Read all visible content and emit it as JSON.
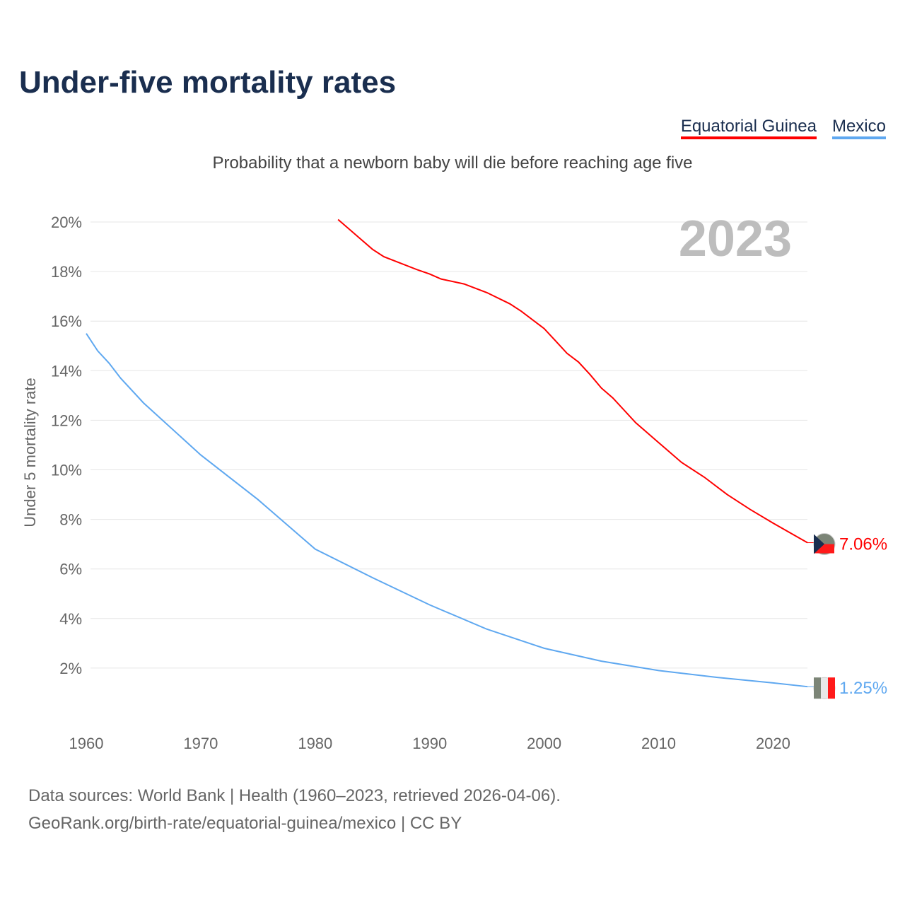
{
  "title": "Under-five mortality rates",
  "subtitle": "Probability that a newborn baby will die before reaching age five",
  "year_label": "2023",
  "source_line1": "Data sources: World Bank | Health (1960–2023, retrieved 2026-04-06).",
  "source_line2": "GeoRank.org/birth-rate/equatorial-guinea/mexico | CC BY",
  "chart_data": {
    "type": "line",
    "title": "Under-five mortality rates",
    "xlabel": "",
    "ylabel": "Under 5 mortality rate",
    "xlim": [
      1960,
      2023
    ],
    "ylim": [
      0,
      20
    ],
    "xticks": [
      1960,
      1970,
      1980,
      1990,
      2000,
      2010,
      2020
    ],
    "yticks": [
      2,
      4,
      6,
      8,
      10,
      12,
      14,
      16,
      18,
      20
    ],
    "ytick_labels": [
      "2%",
      "4%",
      "6%",
      "8%",
      "10%",
      "12%",
      "14%",
      "16%",
      "18%",
      "20%"
    ],
    "grid": true,
    "legend_position": "top-right",
    "series": [
      {
        "name": "Equatorial Guinea",
        "color": "#ff0000",
        "end_label": "7.06%",
        "x": [
          1982,
          1985,
          1986,
          1989,
          1990,
          1991,
          1993,
          1995,
          1997,
          1998,
          2000,
          2001,
          2002,
          2003,
          2004,
          2005,
          2006,
          2007,
          2008,
          2010,
          2012,
          2014,
          2016,
          2018,
          2020,
          2023
        ],
        "y": [
          20.1,
          18.9,
          18.6,
          18.06,
          17.9,
          17.7,
          17.5,
          17.15,
          16.7,
          16.4,
          15.7,
          15.2,
          14.7,
          14.35,
          13.85,
          13.3,
          12.9,
          12.4,
          11.9,
          11.1,
          10.3,
          9.7,
          9.0,
          8.4,
          7.85,
          7.06
        ]
      },
      {
        "name": "Mexico",
        "color": "#5fa8f0",
        "end_label": "1.25%",
        "x": [
          1960,
          1961,
          1962,
          1963,
          1965,
          1970,
          1975,
          1980,
          1985,
          1990,
          1995,
          2000,
          2005,
          2010,
          2015,
          2020,
          2023
        ],
        "y": [
          15.5,
          14.8,
          14.3,
          13.7,
          12.7,
          10.6,
          8.8,
          6.8,
          5.65,
          4.55,
          3.57,
          2.8,
          2.28,
          1.9,
          1.63,
          1.4,
          1.25
        ]
      }
    ]
  }
}
